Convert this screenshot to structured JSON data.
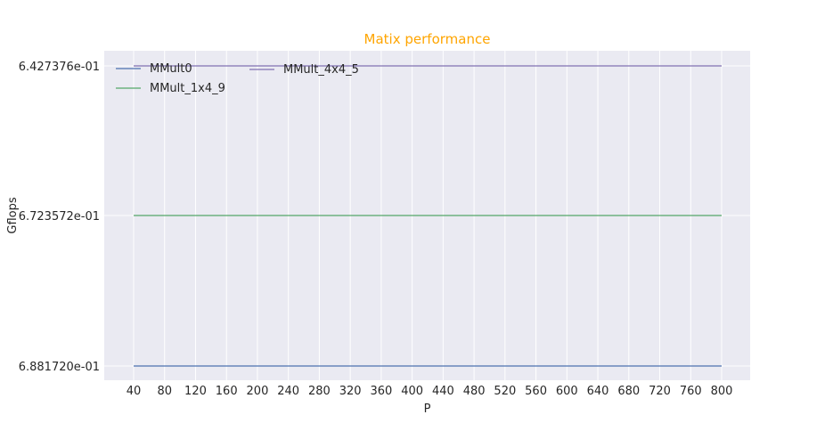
{
  "chart_data": {
    "type": "line",
    "title": "Matix performance",
    "xlabel": "P",
    "ylabel": "Gflops",
    "x_ticks": [
      40,
      80,
      120,
      160,
      200,
      240,
      280,
      320,
      360,
      400,
      440,
      480,
      520,
      560,
      600,
      640,
      680,
      720,
      760,
      800
    ],
    "xlim": [
      40,
      800
    ],
    "y_categories": [
      "6.881720e-01",
      "6.723572e-01",
      "6.427376e-01"
    ],
    "series": [
      {
        "name": "MMult0",
        "x_start": 40,
        "x_end": 800,
        "y": "6.881720e-01",
        "color": "#4c72b0"
      },
      {
        "name": "MMult_1x4_9",
        "x_start": 40,
        "x_end": 800,
        "y": "6.723572e-01",
        "color": "#55a868"
      },
      {
        "name": "MMult_4x4_5",
        "x_start": 40,
        "x_end": 800,
        "y": "6.427376e-01",
        "color": "#8172b2"
      }
    ],
    "grid": true,
    "legend_position": "top-left",
    "colors": {
      "background": "#eaeaf2",
      "grid": "#ffffff",
      "title": "#ffa500",
      "text": "#262626"
    }
  }
}
